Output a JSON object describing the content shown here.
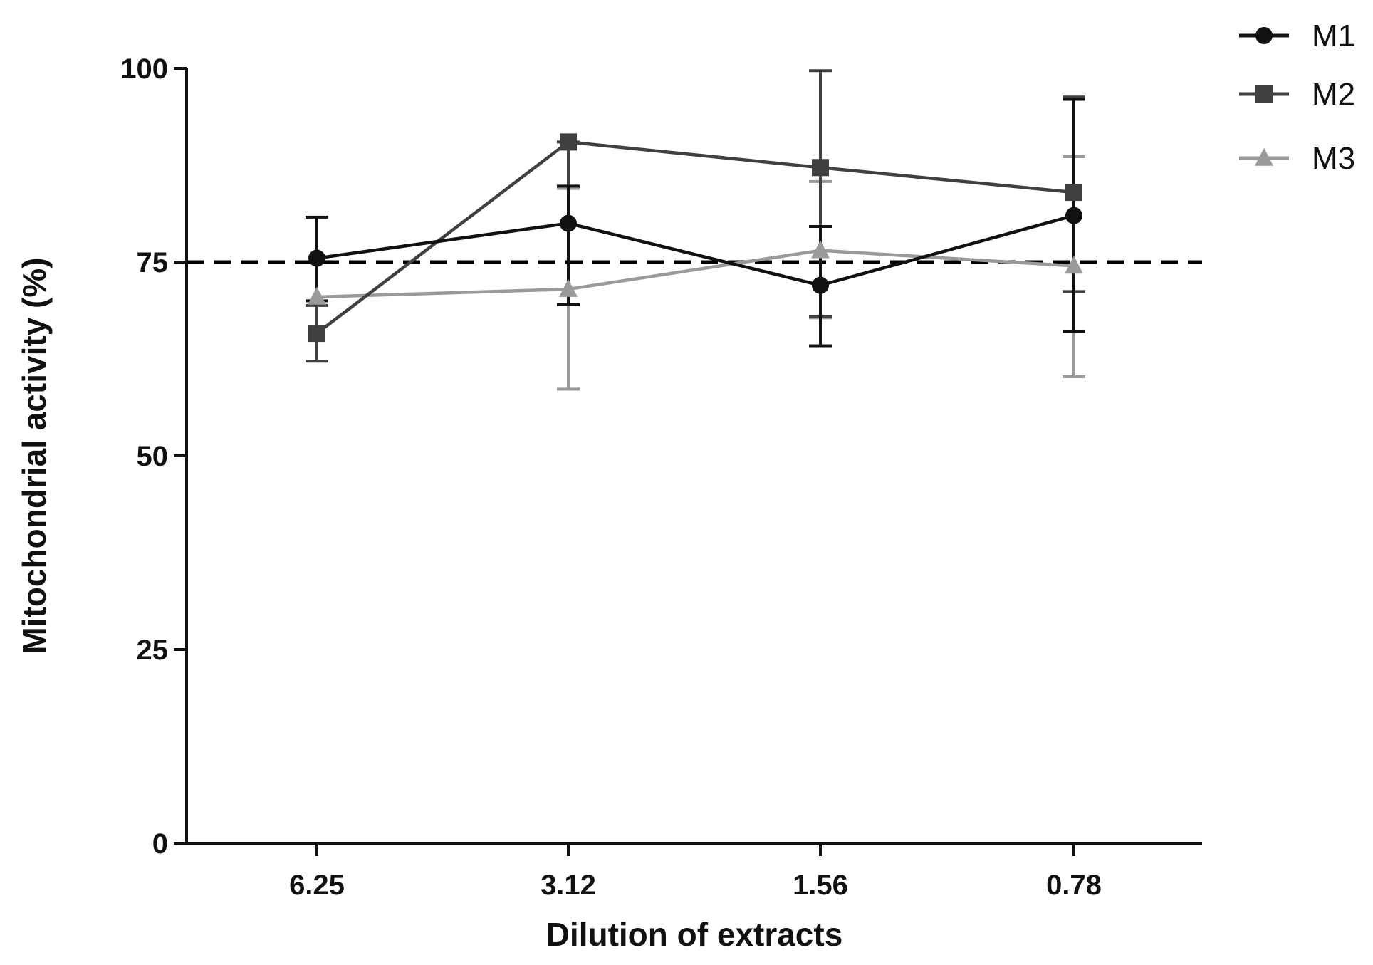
{
  "chart_data": {
    "type": "line",
    "title": "",
    "xlabel": "Dilution of extracts",
    "ylabel": "Mitochondrial activity (%)",
    "categories": [
      "6.25",
      "3.12",
      "1.56",
      "0.78"
    ],
    "ylim": [
      0,
      100
    ],
    "yticks": [
      "0",
      "25",
      "50",
      "75",
      "100"
    ],
    "reference_line": {
      "y": 75,
      "style": "dashed",
      "color": "#000000"
    },
    "legend_position": "top-right",
    "series": [
      {
        "name": "M1",
        "marker": "circle",
        "color": "#111111",
        "values": [
          75.5,
          80.0,
          72.0,
          81.0
        ],
        "error_low": [
          70.0,
          69.5,
          64.2,
          66.0
        ],
        "error_high": [
          80.8,
          84.8,
          79.6,
          96.0
        ]
      },
      {
        "name": "M2",
        "marker": "square",
        "color": "#404040",
        "values": [
          65.8,
          90.5,
          87.2,
          84.0
        ],
        "error_low": [
          62.2,
          69.5,
          68.0,
          71.2
        ],
        "error_high": [
          69.4,
          90.5,
          99.7,
          96.3
        ]
      },
      {
        "name": "M3",
        "marker": "triangle",
        "color": "#9a9a9a",
        "values": [
          70.5,
          71.5,
          76.5,
          74.5
        ],
        "error_low": [
          70.5,
          58.6,
          67.8,
          60.2
        ],
        "error_high": [
          70.5,
          84.5,
          85.4,
          88.6
        ]
      }
    ]
  }
}
